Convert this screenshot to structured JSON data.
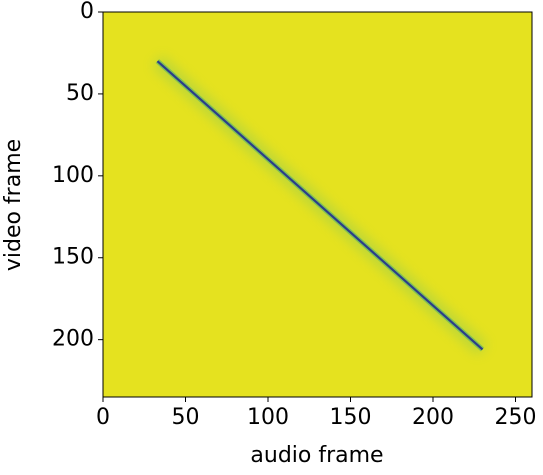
{
  "chart_data": {
    "type": "heatmap",
    "xlabel": "audio frame",
    "ylabel": "video frame",
    "xlim": [
      0,
      260
    ],
    "ylim": [
      0,
      235
    ],
    "y_inverted": true,
    "xticks": [
      0,
      50,
      100,
      150,
      200,
      250
    ],
    "yticks": [
      0,
      50,
      100,
      150,
      200
    ],
    "background": "#e5e21f",
    "x": [
      33,
      230
    ],
    "series": [
      {
        "color": "#2a3d8a",
        "values": [
          30,
          206
        ]
      }
    ]
  }
}
